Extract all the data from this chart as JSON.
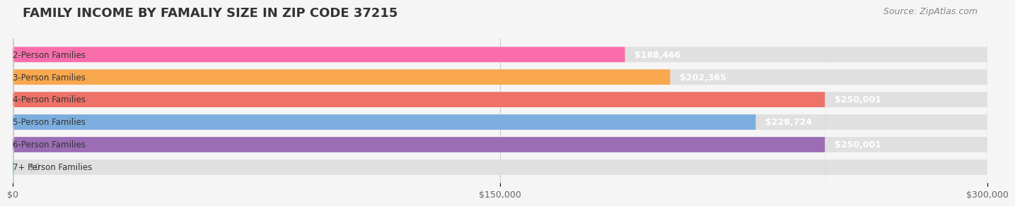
{
  "title": "FAMILY INCOME BY FAMALIY SIZE IN ZIP CODE 37215",
  "source": "Source: ZipAtlas.com",
  "categories": [
    "2-Person Families",
    "3-Person Families",
    "4-Person Families",
    "5-Person Families",
    "6-Person Families",
    "7+ Person Families"
  ],
  "values": [
    188466,
    202365,
    250001,
    228724,
    250001,
    0
  ],
  "labels": [
    "$188,466",
    "$202,365",
    "$250,001",
    "$228,724",
    "$250,001",
    "$0"
  ],
  "bar_colors": [
    "#F96EAA",
    "#F9A84D",
    "#EE7268",
    "#7BAEDE",
    "#9B6DB5",
    "#5EC8C8"
  ],
  "bar_bg_colors": [
    "#F9C8DC",
    "#FCD8A8",
    "#F5BDB8",
    "#C0D8F0",
    "#D4BEE0",
    "#B0E4E4"
  ],
  "xlim": [
    0,
    300000
  ],
  "xticks": [
    0,
    150000,
    300000
  ],
  "xtick_labels": [
    "$0",
    "$150,000",
    "$300,000"
  ],
  "background_color": "#f5f5f5",
  "bar_bg_color": "#e8e8e8",
  "title_fontsize": 13,
  "label_fontsize": 9,
  "axis_fontsize": 9,
  "source_fontsize": 9
}
